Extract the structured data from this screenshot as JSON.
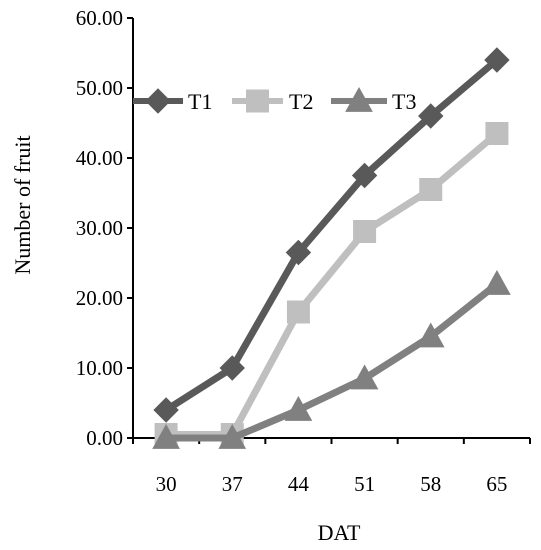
{
  "chart_data": {
    "type": "line",
    "title": "",
    "xlabel": "DAT",
    "ylabel": "Number of fruit",
    "categories": [
      "30",
      "37",
      "44",
      "51",
      "58",
      "65"
    ],
    "ylim": [
      0,
      60
    ],
    "yticks": [
      "0.00",
      "10.00",
      "20.00",
      "30.00",
      "40.00",
      "50.00",
      "60.00"
    ],
    "grid": false,
    "legend_position": "top-left",
    "series": [
      {
        "name": "T1",
        "values": [
          4.0,
          10.0,
          26.5,
          37.5,
          46.0,
          54.0
        ],
        "color": "#595959",
        "marker": "diamond"
      },
      {
        "name": "T2",
        "values": [
          0.5,
          0.5,
          18.0,
          29.5,
          35.5,
          43.5
        ],
        "color": "#bfbfbf",
        "marker": "square"
      },
      {
        "name": "T3",
        "values": [
          0.0,
          0.0,
          4.0,
          8.5,
          14.5,
          22.0
        ],
        "color": "#808080",
        "marker": "triangle"
      }
    ]
  }
}
